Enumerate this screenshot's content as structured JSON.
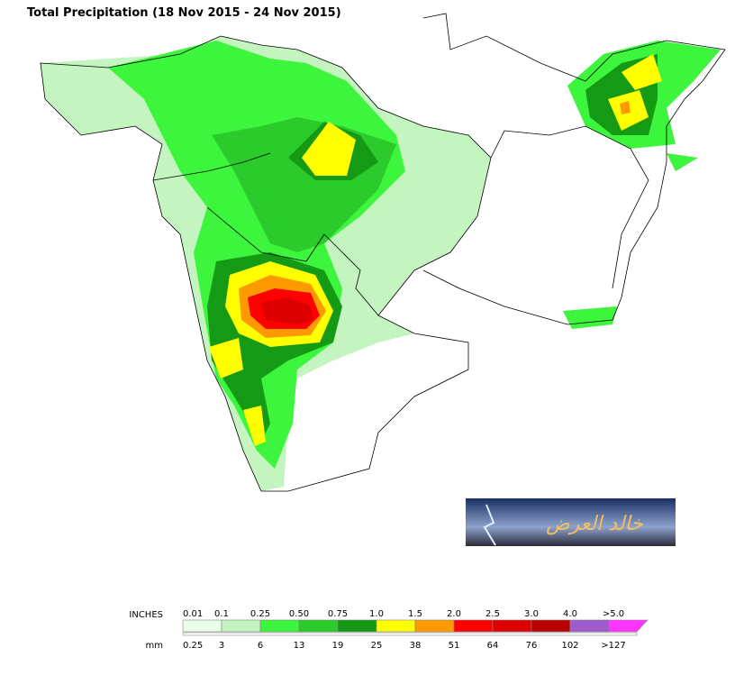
{
  "title": "Total Precipitation (18 Nov 2015 - 24 Nov 2015)",
  "watermark": "خالد العرض",
  "legend": {
    "inches_label": "INCHES",
    "mm_label": "mm",
    "inches": [
      "0.01",
      "0.1",
      "0.25",
      "0.50",
      "0.75",
      "1.0",
      "1.5",
      "2.0",
      "2.5",
      "3.0",
      "4.0",
      ">5.0"
    ],
    "mm": [
      "0.25",
      "3",
      "6",
      "13",
      "19",
      "25",
      "38",
      "51",
      "64",
      "76",
      "102",
      ">127"
    ],
    "colors": [
      "#eafde8",
      "#c4f4c0",
      "#3cf53c",
      "#2ccb2c",
      "#159a15",
      "#ffff00",
      "#ff9900",
      "#ff0000",
      "#dd0000",
      "#b80000",
      "#9c5ccc",
      "#ff33ff"
    ]
  }
}
